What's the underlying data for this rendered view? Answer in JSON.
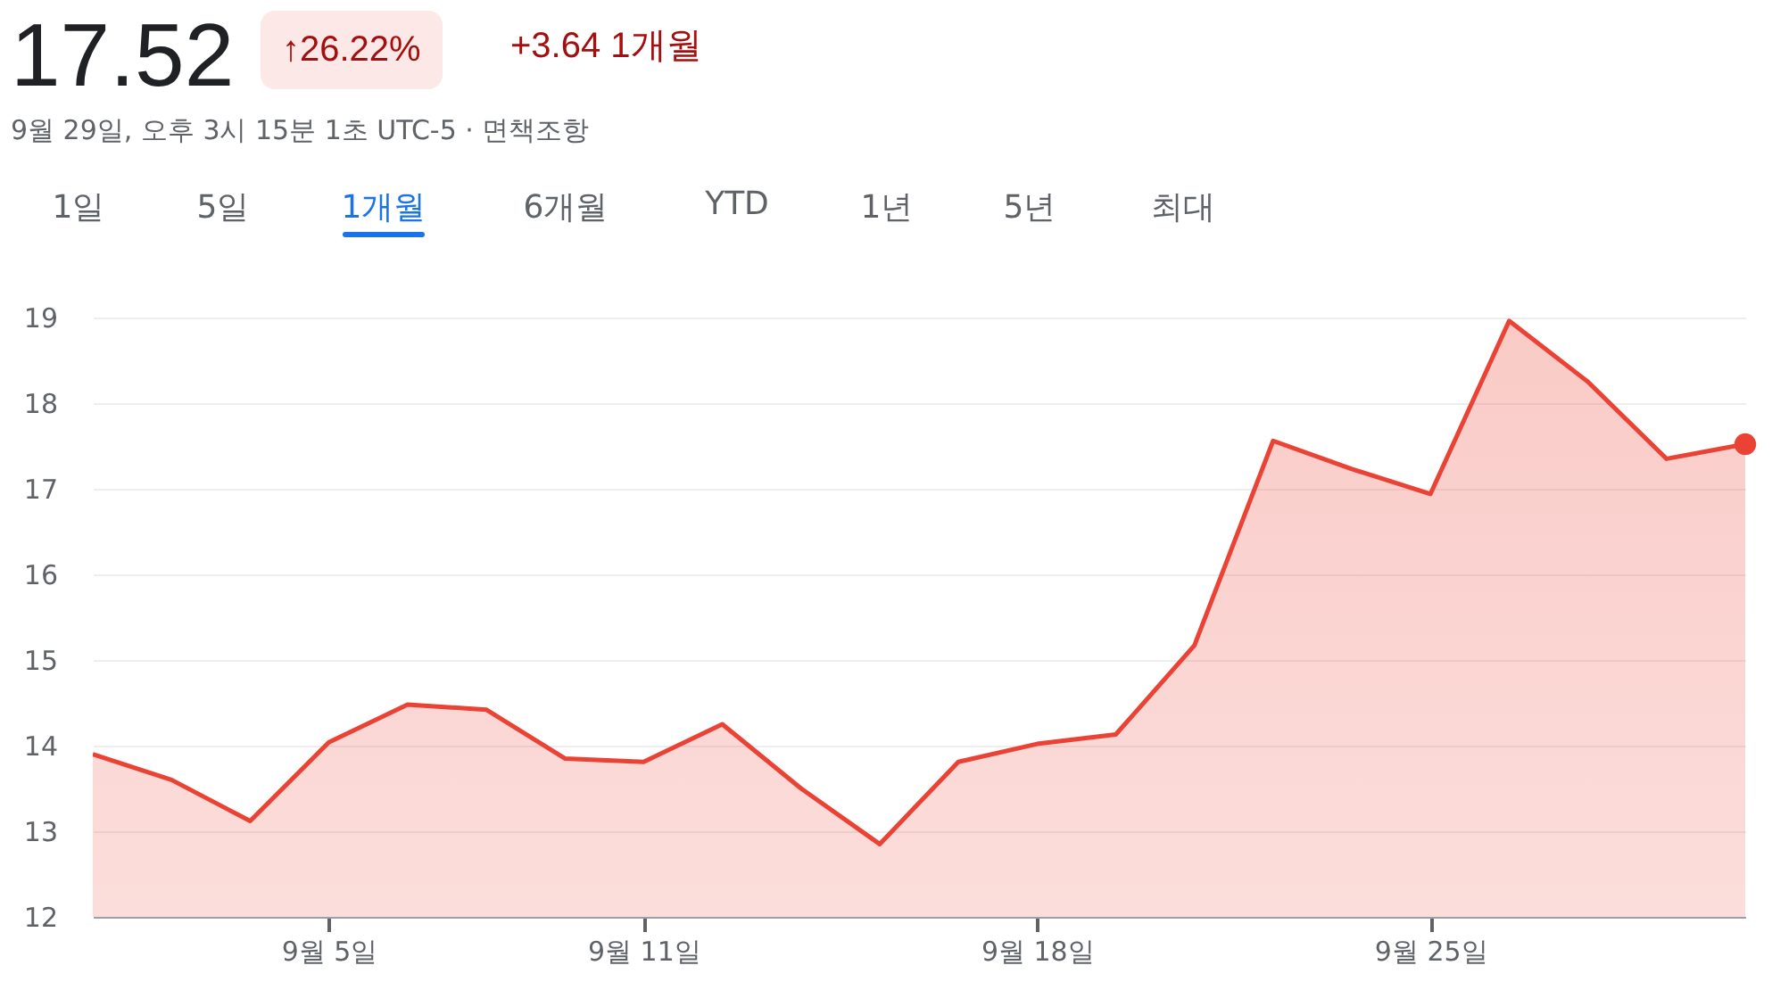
{
  "chart_data": {
    "type": "area",
    "title": "17.52",
    "subtitle": "9월 29일, 오후 3시 15분 1초 UTC-5 · 면책조항",
    "annotations": [
      "↑26.22%",
      "+3.64 1개월",
      "1일",
      "5일",
      "1개월",
      "6개월",
      "YTD",
      "1년",
      "5년",
      "최대"
    ],
    "categories": [
      null,
      null,
      null,
      "9월 5일",
      null,
      null,
      null,
      "9월 11일",
      null,
      null,
      null,
      null,
      "9월 18일",
      null,
      null,
      null,
      null,
      "9월 25일",
      null,
      null,
      null,
      null
    ],
    "series": [
      {
        "color": "#ea4335",
        "values": [
          13.9,
          13.6,
          13.12,
          14.04,
          14.48,
          14.42,
          13.85,
          13.81,
          14.25,
          13.5,
          12.85,
          13.81,
          14.02,
          14.13,
          15.17,
          17.56,
          17.23,
          16.94,
          18.96,
          18.25,
          17.35,
          17.52
        ]
      }
    ],
    "ylim": [
      12,
      19
    ],
    "yticks": [
      12,
      13,
      14,
      15,
      16,
      17,
      18,
      19
    ],
    "grid": "y"
  }
}
